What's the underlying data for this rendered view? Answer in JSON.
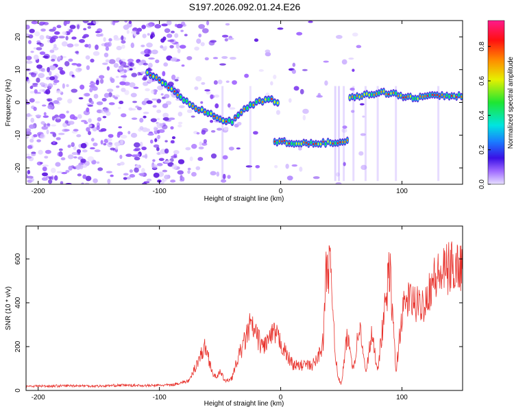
{
  "title": "S197.2026.092.01.24.E26",
  "colors": {
    "line": "#e8302a",
    "axis": "#000000",
    "spectro_low": "#c9a0ff",
    "spectro_mid": "#3b1cf0",
    "spectro_high": "#ff1e1e"
  },
  "chart_data": [
    {
      "type": "heatmap",
      "title": "S197.2026.092.01.24.E26",
      "xlabel": "Height of straight line (km)",
      "ylabel": "Frequency (Hz)",
      "xlim": [
        -210,
        150
      ],
      "ylim": [
        -25,
        25
      ],
      "xticks": [
        -200,
        -100,
        0,
        100
      ],
      "xtick_labels": [
        "-200",
        "-100",
        "0",
        "100"
      ],
      "yticks": [
        20,
        10,
        0,
        -10,
        -20
      ],
      "ytick_labels": [
        "20",
        "10",
        "0",
        "-10",
        "-20"
      ],
      "track": {
        "x": [
          -110,
          -100,
          -90,
          -80,
          -70,
          -60,
          -50,
          -40,
          -30,
          -20,
          -10,
          -2
        ],
        "y": [
          9,
          7,
          4,
          1,
          -2,
          -3,
          -5,
          -6,
          -2,
          0,
          1,
          0
        ]
      },
      "band": {
        "x": [
          -5,
          0,
          10,
          20,
          30,
          40,
          50,
          55
        ],
        "y": [
          -12,
          -12,
          -12.5,
          -12.5,
          -12.5,
          -12.3,
          -12,
          -11.5
        ]
      },
      "band2": {
        "x": [
          57,
          65,
          75,
          85,
          95,
          105,
          115,
          125,
          135,
          150
        ],
        "y": [
          1.5,
          2,
          2.5,
          3,
          2.5,
          1.5,
          1.5,
          2,
          2,
          2
        ]
      },
      "colorbar": {
        "label": "Normalized spectral amplitude",
        "ticks": [
          "0.0",
          "0.2",
          "0.4",
          "0.6",
          "0.8"
        ],
        "range": [
          0,
          0.95
        ]
      }
    },
    {
      "type": "line",
      "xlabel": "Height of straight line (km)",
      "ylabel": "SNR (10 * v/v)",
      "xlim": [
        -210,
        150
      ],
      "ylim": [
        0,
        750
      ],
      "xticks": [
        -200,
        -100,
        0,
        100
      ],
      "xtick_labels": [
        "-200",
        "-100",
        "0",
        "100"
      ],
      "yticks": [
        0,
        200,
        400,
        600
      ],
      "ytick_labels": [
        "0",
        "200",
        "400",
        "600"
      ],
      "series": [
        {
          "name": "SNR",
          "x": [
            -210,
            -190,
            -170,
            -150,
            -130,
            -110,
            -90,
            -75,
            -68,
            -62,
            -58,
            -55,
            -50,
            -45,
            -40,
            -35,
            -30,
            -25,
            -20,
            -15,
            -10,
            -5,
            0,
            5,
            10,
            15,
            20,
            25,
            30,
            35,
            38,
            40,
            42,
            45,
            47,
            50,
            55,
            60,
            65,
            70,
            75,
            80,
            90,
            95,
            100,
            105,
            110,
            115,
            120,
            125,
            130,
            135,
            140,
            145,
            150
          ],
          "y": [
            20,
            20,
            22,
            20,
            24,
            22,
            25,
            45,
            140,
            200,
            120,
            60,
            80,
            40,
            60,
            150,
            220,
            300,
            250,
            200,
            230,
            260,
            220,
            160,
            120,
            110,
            120,
            110,
            140,
            220,
            600,
            560,
            500,
            180,
            60,
            30,
            250,
            100,
            300,
            80,
            250,
            100,
            560,
            80,
            350,
            420,
            400,
            380,
            420,
            500,
            520,
            540,
            560,
            570,
            570
          ]
        }
      ]
    }
  ]
}
